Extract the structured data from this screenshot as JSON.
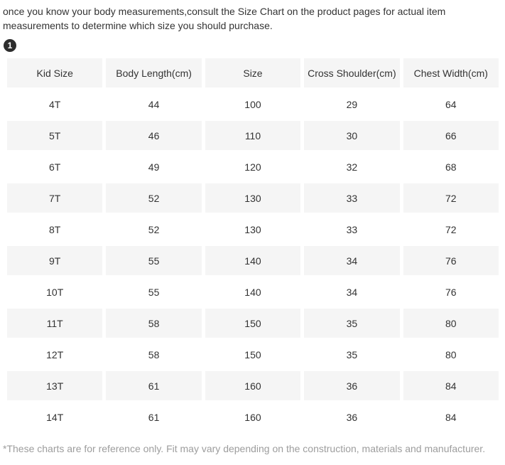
{
  "intro": {
    "text": "once you know your body measurements,consult the Size Chart on the product pages for actual item measurements to determine which size you should purchase."
  },
  "badge": {
    "label": "1"
  },
  "table": {
    "headers": [
      "Kid Size",
      "Body Length(cm)",
      "Size",
      "Cross Shoulder(cm)",
      "Chest Width(cm)"
    ],
    "rows": [
      {
        "cells": [
          "4T",
          "44",
          "100",
          "29",
          "64"
        ]
      },
      {
        "cells": [
          "5T",
          "46",
          "110",
          "30",
          "66"
        ]
      },
      {
        "cells": [
          "6T",
          "49",
          "120",
          "32",
          "68"
        ]
      },
      {
        "cells": [
          "7T",
          "52",
          "130",
          "33",
          "72"
        ]
      },
      {
        "cells": [
          "8T",
          "52",
          "130",
          "33",
          "72"
        ]
      },
      {
        "cells": [
          "9T",
          "55",
          "140",
          "34",
          "76"
        ]
      },
      {
        "cells": [
          "10T",
          "55",
          "140",
          "34",
          "76"
        ]
      },
      {
        "cells": [
          "11T",
          "58",
          "150",
          "35",
          "80"
        ]
      },
      {
        "cells": [
          "12T",
          "58",
          "150",
          "35",
          "80"
        ]
      },
      {
        "cells": [
          "13T",
          "61",
          "160",
          "36",
          "84"
        ]
      },
      {
        "cells": [
          "14T",
          "61",
          "160",
          "36",
          "84"
        ]
      }
    ]
  },
  "footnote": {
    "text": "*These charts are for reference only. Fit may vary depending on the construction, materials and manufacturer."
  },
  "colors": {
    "stripe": "#f5f5f5",
    "text": "#333333",
    "muted": "#9d9d9d",
    "badge_bg": "#2d2d2d"
  }
}
